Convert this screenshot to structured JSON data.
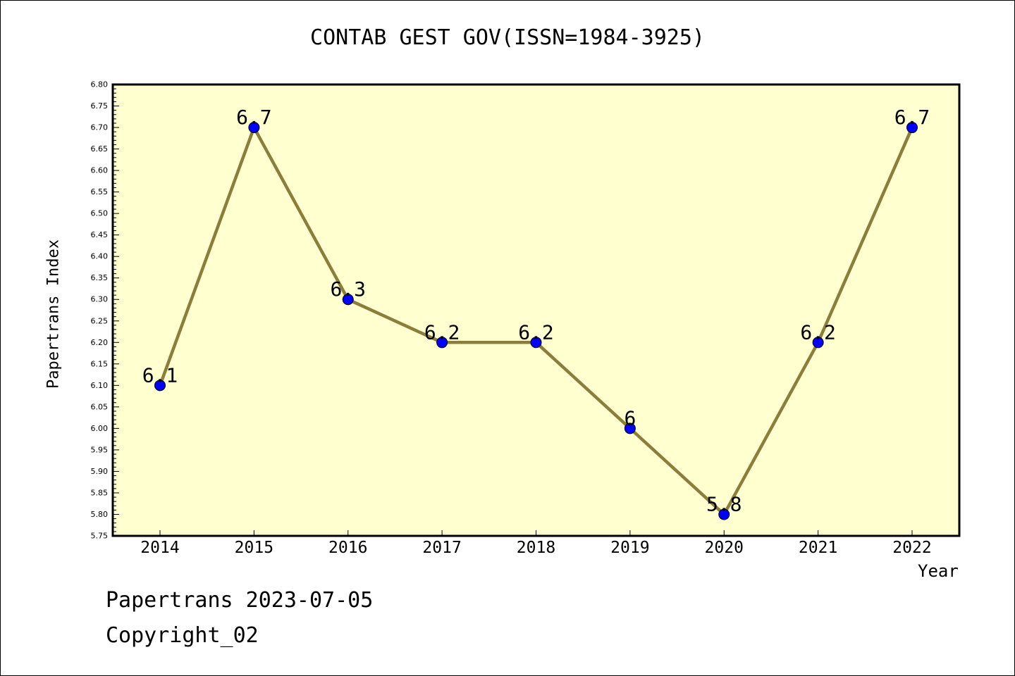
{
  "chart_data": {
    "type": "line",
    "title": "CONTAB GEST GOV(ISSN=1984-3925)",
    "xlabel": "Year",
    "ylabel": "Papertrans Index",
    "categories": [
      "2014",
      "2015",
      "2016",
      "2017",
      "2018",
      "2019",
      "2020",
      "2021",
      "2022"
    ],
    "series": [
      {
        "values": [
          6.1,
          6.7,
          6.3,
          6.2,
          6.2,
          6.0,
          5.8,
          6.2,
          6.7
        ],
        "labels": [
          "6.1",
          "6.7",
          "6.3",
          "6.2",
          "6.2",
          "6",
          "5.8",
          "6.2",
          "6.7"
        ]
      }
    ],
    "ylim": [
      5.75,
      6.8
    ],
    "yticks": [
      "5.75",
      "5.80",
      "5.85",
      "5.90",
      "5.95",
      "6.00",
      "6.05",
      "6.10",
      "6.15",
      "6.20",
      "6.25",
      "6.30",
      "6.35",
      "6.40",
      "6.45",
      "6.50",
      "6.55",
      "6.60",
      "6.65",
      "6.70",
      "6.75",
      "6.80"
    ],
    "grid": false,
    "colors": {
      "plot_background": "#ffffd0",
      "line": "#8b7d3a",
      "marker": "#0000ff"
    }
  },
  "footer": {
    "line1": "Papertrans 2023-07-05",
    "line2": "Copyright_02"
  }
}
